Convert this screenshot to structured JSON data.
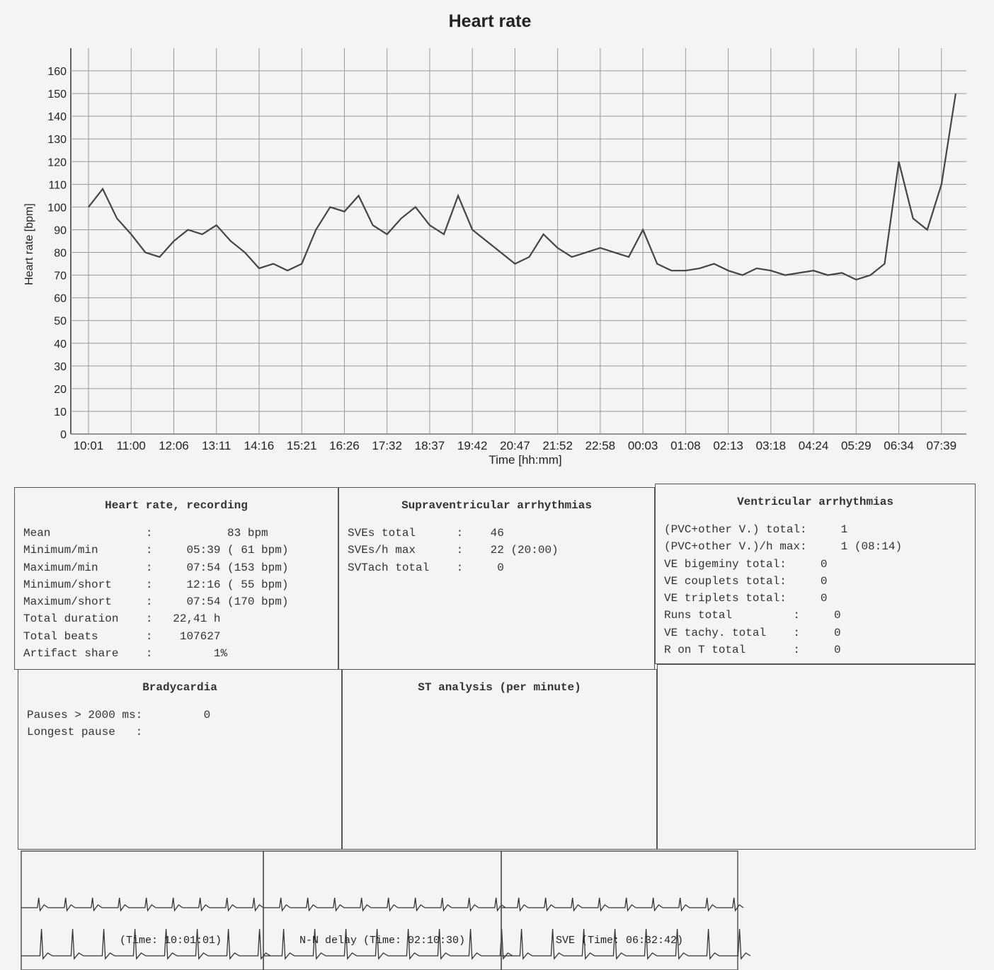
{
  "chart_data": {
    "type": "line",
    "title": "Heart rate",
    "x_label": "Time [hh:mm]",
    "y_label": "Heart rate [bpm]",
    "categories": [
      "10:01",
      null,
      null,
      "11:00",
      null,
      null,
      "12:06",
      null,
      null,
      "13:11",
      null,
      null,
      "14:16",
      null,
      null,
      "15:21",
      null,
      null,
      "16:26",
      null,
      null,
      "17:32",
      null,
      null,
      "18:37",
      null,
      null,
      "19:42",
      null,
      null,
      "20:47",
      null,
      null,
      "21:52",
      null,
      null,
      "22:58",
      null,
      null,
      "00:03",
      null,
      null,
      "01:08",
      null,
      null,
      "02:13",
      null,
      null,
      "03:18",
      null,
      null,
      "04:24",
      null,
      null,
      "05:29",
      null,
      null,
      "06:34",
      null,
      null,
      "07:39",
      null
    ],
    "series": [
      {
        "color": "#444444",
        "values": [
          100,
          108,
          95,
          88,
          80,
          78,
          85,
          90,
          88,
          92,
          85,
          80,
          73,
          75,
          72,
          75,
          90,
          100,
          98,
          105,
          92,
          88,
          95,
          100,
          92,
          88,
          105,
          90,
          85,
          80,
          75,
          78,
          88,
          82,
          78,
          80,
          82,
          80,
          78,
          90,
          75,
          72,
          72,
          73,
          75,
          72,
          70,
          73,
          72,
          70,
          71,
          72,
          70,
          71,
          68,
          70,
          75,
          120,
          95,
          90,
          110,
          150
        ]
      }
    ],
    "ylim": [
      0,
      170
    ],
    "yticks": [
      0,
      10,
      20,
      30,
      40,
      50,
      60,
      70,
      80,
      90,
      100,
      110,
      120,
      130,
      140,
      150,
      160
    ],
    "grid": true
  },
  "panels": [
    {
      "title": "Heart rate, recording",
      "lines": [
        "Mean              :           83 bpm",
        "Minimum/min       :     05:39 ( 61 bpm)",
        "Maximum/min       :     07:54 (153 bpm)",
        "Minimum/short     :     12:16 ( 55 bpm)",
        "Maximum/short     :     07:54 (170 bpm)",
        "Total duration    :   22,41 h",
        "Total beats       :    107627",
        "Artifact share    :         1%"
      ]
    },
    {
      "title": "Supraventricular arrhythmias",
      "lines": [
        "SVEs total      :    46",
        "SVEs/h max      :    22 (20:00)",
        "SVTach total    :     0"
      ]
    },
    {
      "title": "Ventricular arrhythmias",
      "lines": [
        "(PVC+other V.) total:     1",
        "(PVC+other V.)/h max:     1 (08:14)",
        "VE bigeminy total:     0",
        "VE couplets total:     0",
        "VE triplets total:     0",
        "Runs total         :     0",
        "VE tachy. total    :     0",
        "R on T total       :     0"
      ]
    },
    {
      "title": "Bradycardia",
      "lines": [
        "Pauses > 2000 ms:         0",
        "Longest pause   :"
      ]
    },
    {
      "title": "ST analysis (per minute)",
      "lines": []
    }
  ],
  "strips": [
    "(Time: 10:01:01)",
    "N-N delay (Time: 02:10:30)",
    "SVE (Time: 06:32:42)"
  ]
}
